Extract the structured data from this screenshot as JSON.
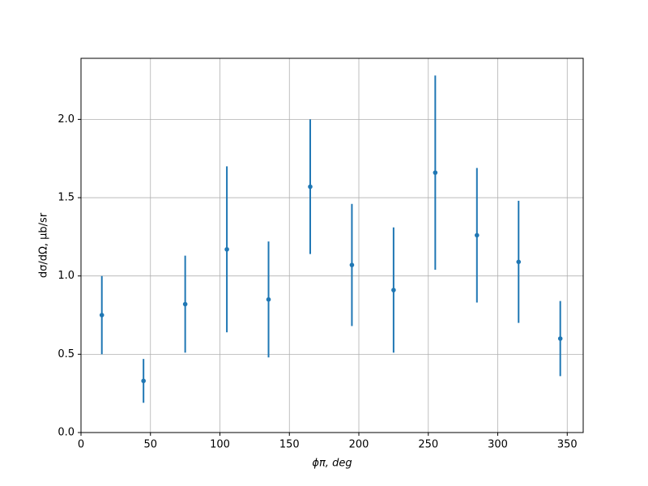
{
  "chart_data": {
    "type": "scatter",
    "x_label": "ϕπ, deg",
    "y_label": "dσ/dΩ, μb/sr",
    "x": [
      15,
      45,
      75,
      105,
      135,
      165,
      195,
      225,
      255,
      285,
      315,
      345
    ],
    "series": [
      {
        "color": "#1f77b4",
        "values": [
          0.75,
          0.33,
          0.82,
          1.17,
          0.85,
          1.57,
          1.07,
          0.91,
          1.66,
          1.26,
          1.09,
          0.6
        ],
        "errors": [
          0.25,
          0.14,
          0.31,
          0.53,
          0.37,
          0.43,
          0.39,
          0.4,
          0.62,
          0.43,
          0.39,
          0.24
        ]
      }
    ],
    "xlim": [
      0,
      361.5
    ],
    "ylim": [
      0,
      2.39
    ],
    "xticks": [
      0,
      50,
      100,
      150,
      200,
      250,
      300,
      350
    ],
    "yticks": [
      {
        "value": 0,
        "label": "0.0"
      },
      {
        "value": 0.5,
        "label": "0.5"
      },
      {
        "value": 1,
        "label": "1.0"
      },
      {
        "value": 1.5,
        "label": "1.5"
      },
      {
        "value": 2,
        "label": "2.0"
      }
    ],
    "grid": true
  }
}
